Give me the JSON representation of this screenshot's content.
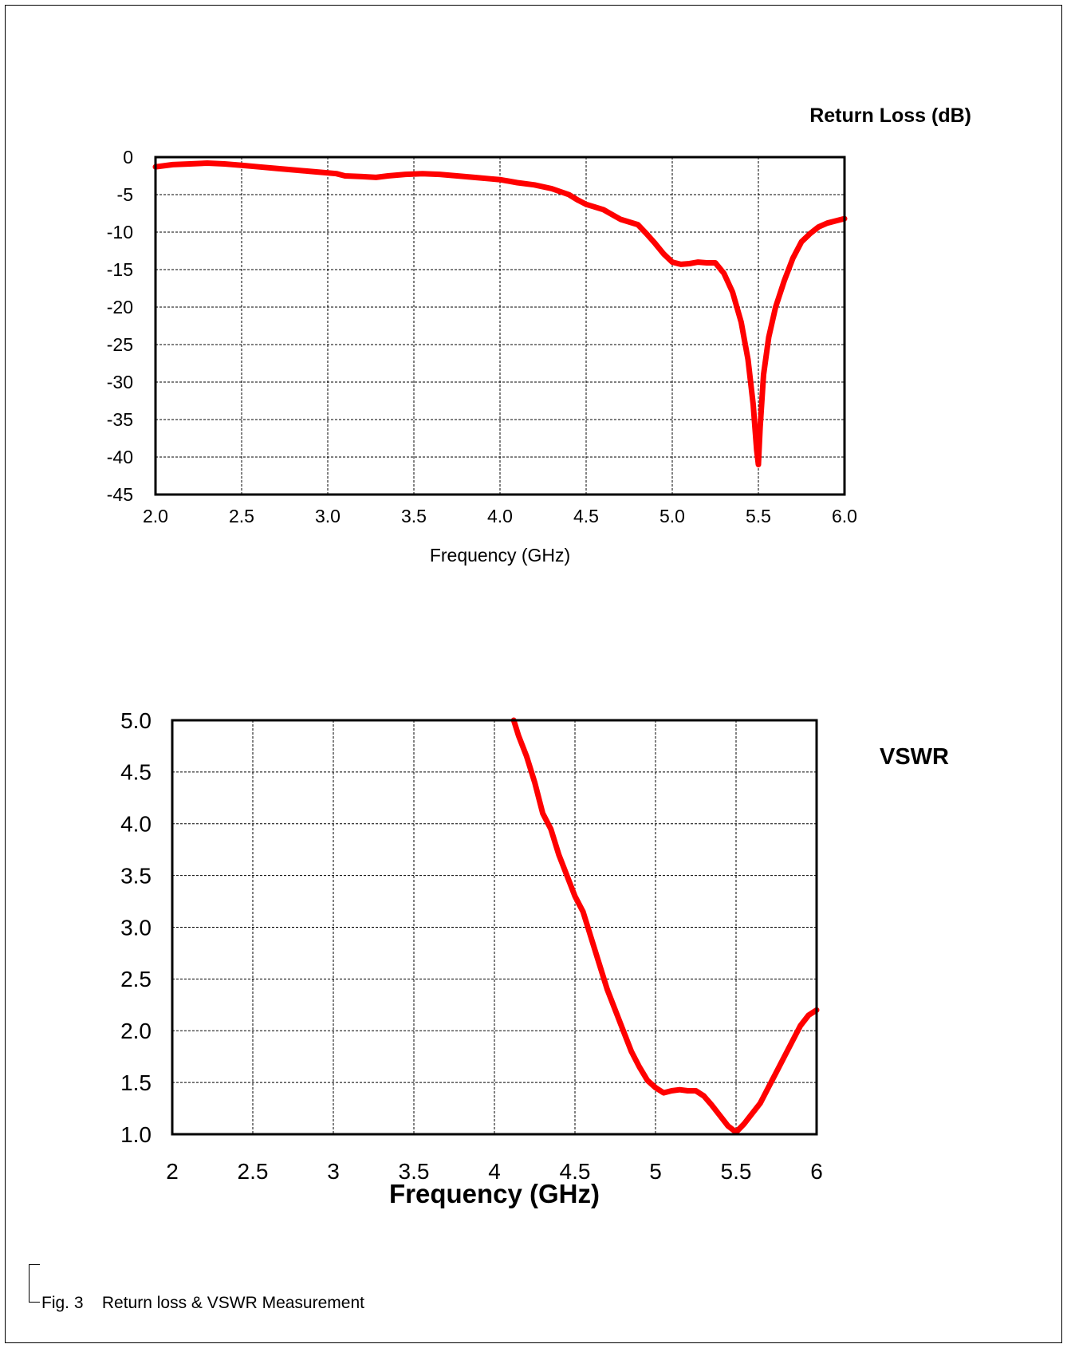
{
  "caption": "Fig. 3    Return loss & VSWR Measurement",
  "colors": {
    "series": "#ff0000",
    "grid": "#000000"
  },
  "chart_data": [
    {
      "type": "line",
      "title": "Return Loss (dB)",
      "xlabel": "Frequency (GHz)",
      "ylabel": "",
      "xlim": [
        2.0,
        6.0
      ],
      "ylim": [
        -45,
        0
      ],
      "xticks": [
        "2.0",
        "2.5",
        "3.0",
        "3.5",
        "4.0",
        "4.5",
        "5.0",
        "5.5",
        "6.0"
      ],
      "yticks": [
        "0",
        "-5",
        "-10",
        "-15",
        "-20",
        "-25",
        "-30",
        "-35",
        "-40",
        "-45"
      ],
      "grid": true,
      "series": [
        {
          "x": [
            2.0,
            2.1,
            2.2,
            2.3,
            2.4,
            2.5,
            2.6,
            2.7,
            2.8,
            2.9,
            3.0,
            3.05,
            3.1,
            3.2,
            3.28,
            3.35,
            3.45,
            3.55,
            3.65,
            3.75,
            3.85,
            3.95,
            4.0,
            4.1,
            4.2,
            4.3,
            4.4,
            4.45,
            4.5,
            4.6,
            4.7,
            4.8,
            4.85,
            4.9,
            4.95,
            5.0,
            5.05,
            5.1,
            5.15,
            5.2,
            5.25,
            5.3,
            5.35,
            5.4,
            5.44,
            5.47,
            5.49,
            5.5,
            5.51,
            5.53,
            5.56,
            5.6,
            5.65,
            5.7,
            5.75,
            5.8,
            5.85,
            5.9,
            5.95,
            6.0
          ],
          "y": [
            -1.3,
            -1.0,
            -0.9,
            -0.8,
            -0.9,
            -1.1,
            -1.3,
            -1.5,
            -1.7,
            -1.9,
            -2.1,
            -2.2,
            -2.5,
            -2.6,
            -2.7,
            -2.5,
            -2.3,
            -2.2,
            -2.3,
            -2.5,
            -2.7,
            -2.9,
            -3.0,
            -3.4,
            -3.7,
            -4.2,
            -5.0,
            -5.7,
            -6.3,
            -7.0,
            -8.3,
            -9.0,
            -10.2,
            -11.5,
            -12.9,
            -14.0,
            -14.3,
            -14.2,
            -14.0,
            -14.1,
            -14.1,
            -15.5,
            -18.0,
            -22.0,
            -27.0,
            -33.0,
            -39.0,
            -41.0,
            -36.0,
            -29.0,
            -24.0,
            -20.0,
            -16.5,
            -13.5,
            -11.3,
            -10.2,
            -9.3,
            -8.8,
            -8.5,
            -8.2
          ]
        }
      ]
    },
    {
      "type": "line",
      "title": "VSWR",
      "xlabel": "Frequency (GHz)",
      "ylabel": "",
      "xlim": [
        2,
        6
      ],
      "ylim": [
        1.0,
        5.0
      ],
      "xticks": [
        "2",
        "2.5",
        "3",
        "3.5",
        "4",
        "4.5",
        "5",
        "5.5",
        "6"
      ],
      "yticks": [
        "5.0",
        "4.5",
        "4.0",
        "3.5",
        "3.0",
        "2.5",
        "2.0",
        "1.5",
        "1.0"
      ],
      "grid": true,
      "series": [
        {
          "x": [
            4.12,
            4.15,
            4.2,
            4.25,
            4.3,
            4.35,
            4.4,
            4.45,
            4.5,
            4.55,
            4.6,
            4.65,
            4.7,
            4.75,
            4.8,
            4.85,
            4.9,
            4.95,
            5.0,
            5.05,
            5.1,
            5.15,
            5.2,
            5.25,
            5.3,
            5.35,
            5.4,
            5.45,
            5.5,
            5.55,
            5.6,
            5.65,
            5.7,
            5.75,
            5.8,
            5.85,
            5.9,
            5.95,
            6.0
          ],
          "y": [
            5.0,
            4.85,
            4.65,
            4.4,
            4.1,
            3.95,
            3.7,
            3.5,
            3.3,
            3.15,
            2.9,
            2.65,
            2.4,
            2.2,
            2.0,
            1.8,
            1.65,
            1.52,
            1.45,
            1.4,
            1.42,
            1.43,
            1.42,
            1.42,
            1.37,
            1.28,
            1.18,
            1.08,
            1.02,
            1.1,
            1.2,
            1.3,
            1.45,
            1.6,
            1.75,
            1.9,
            2.05,
            2.15,
            2.2
          ]
        }
      ]
    }
  ]
}
